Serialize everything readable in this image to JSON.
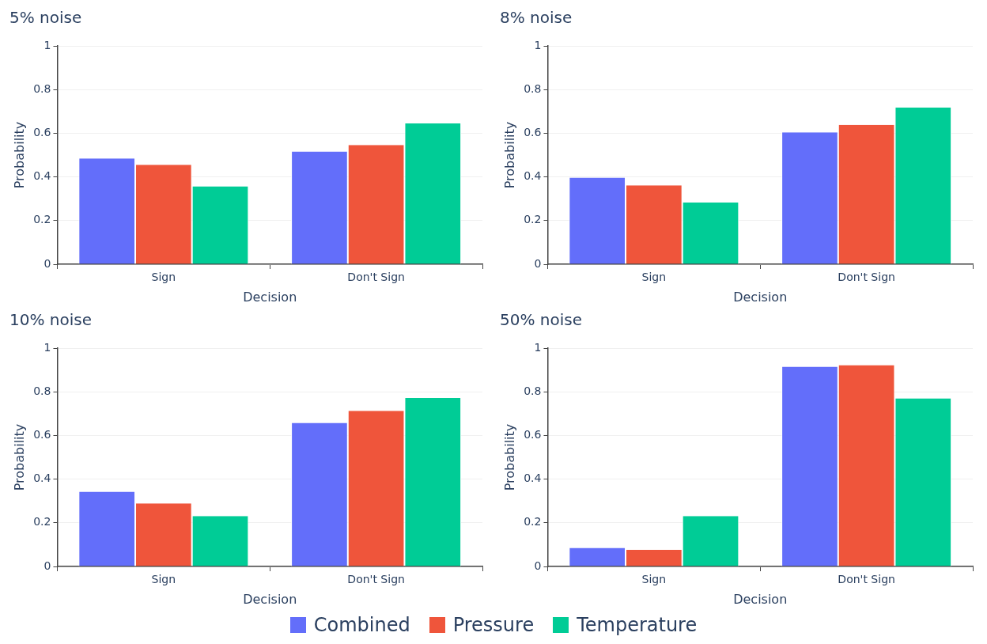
{
  "chart_data": [
    {
      "type": "bar",
      "title": "5% noise",
      "xlabel": "Decision",
      "ylabel": "Probability",
      "categories": [
        "Sign",
        "Don't Sign"
      ],
      "ylim": [
        0,
        1
      ],
      "yticks": [
        0,
        0.2,
        0.4,
        0.6,
        0.8,
        1
      ],
      "grid": "y",
      "legend": "bottom",
      "series": [
        {
          "name": "Combined",
          "color": "#636efa",
          "values": [
            0.485,
            0.516
          ]
        },
        {
          "name": "Pressure",
          "color": "#ef553b",
          "values": [
            0.456,
            0.546
          ]
        },
        {
          "name": "Temperature",
          "color": "#00cc96",
          "values": [
            0.357,
            0.645
          ]
        }
      ]
    },
    {
      "type": "bar",
      "title": "8% noise",
      "xlabel": "Decision",
      "ylabel": "Probability",
      "categories": [
        "Sign",
        "Don't Sign"
      ],
      "ylim": [
        0,
        1
      ],
      "yticks": [
        0,
        0.2,
        0.4,
        0.6,
        0.8,
        1
      ],
      "grid": "y",
      "series": [
        {
          "color": "#636efa",
          "values": [
            0.397,
            0.604
          ]
        },
        {
          "color": "#ef553b",
          "values": [
            0.361,
            0.639
          ]
        },
        {
          "color": "#00cc96",
          "values": [
            0.283,
            0.717
          ]
        }
      ]
    },
    {
      "type": "bar",
      "title": "10% noise",
      "xlabel": "Decision",
      "ylabel": "Probability",
      "categories": [
        "Sign",
        "Don't Sign"
      ],
      "ylim": [
        0,
        1
      ],
      "yticks": [
        0,
        0.2,
        0.4,
        0.6,
        0.8,
        1
      ],
      "grid": "y",
      "series": [
        {
          "color": "#636efa",
          "values": [
            0.342,
            0.658
          ]
        },
        {
          "color": "#ef553b",
          "values": [
            0.289,
            0.713
          ]
        },
        {
          "color": "#00cc96",
          "values": [
            0.231,
            0.772
          ]
        }
      ]
    },
    {
      "type": "bar",
      "title": "50% noise",
      "xlabel": "Decision",
      "ylabel": "Probability",
      "categories": [
        "Sign",
        "Don't Sign"
      ],
      "ylim": [
        0,
        1
      ],
      "yticks": [
        0,
        0.2,
        0.4,
        0.6,
        0.8,
        1
      ],
      "grid": "y",
      "series": [
        {
          "color": "#636efa",
          "values": [
            0.085,
            0.915
          ]
        },
        {
          "color": "#ef553b",
          "values": [
            0.076,
            0.922
          ]
        },
        {
          "color": "#00cc96",
          "values": [
            0.231,
            0.77
          ]
        }
      ]
    }
  ]
}
